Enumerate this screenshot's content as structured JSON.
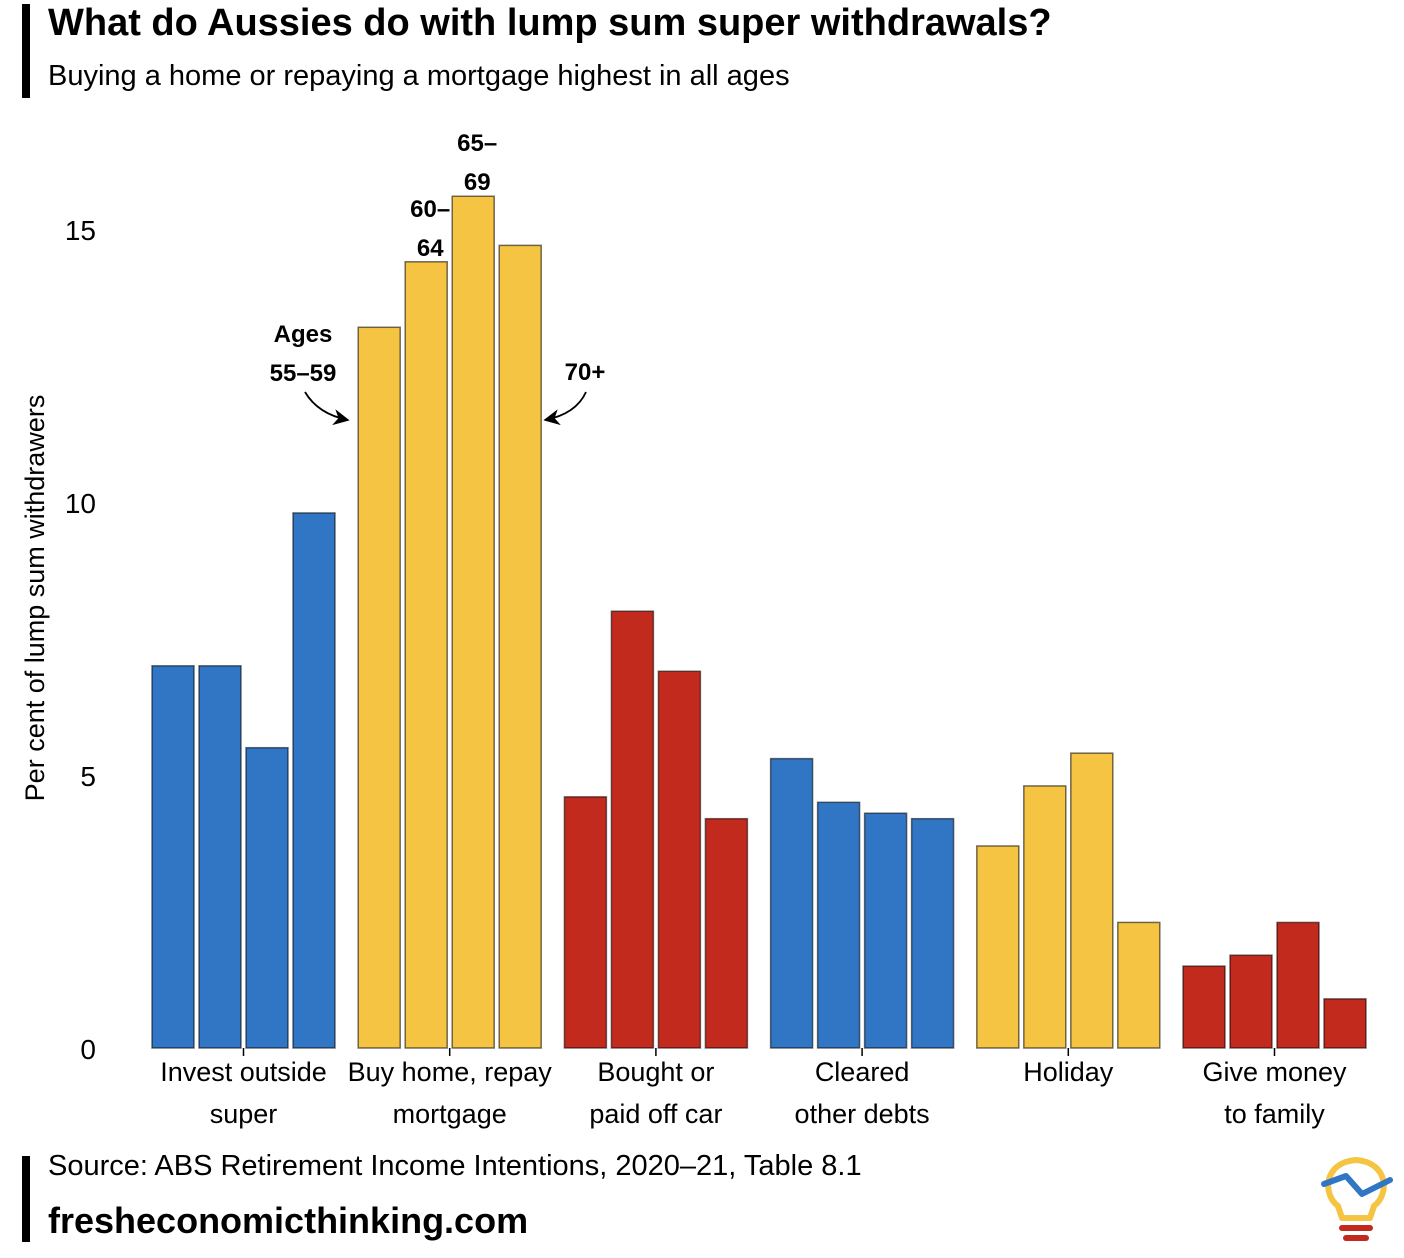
{
  "title": "What do Aussies do with lump sum super withdrawals?",
  "subtitle": "Buying a home or repaying a mortgage highest in all ages",
  "source": "Source: ABS Retirement Income Intentions, 2020‒21, Table 8.1",
  "site": "fresheconomicthinking.com",
  "logo_icon": "lightbulb-logo-icon",
  "chart_data": {
    "type": "bar",
    "ylabel": "Per cent of lump sum withdrawers",
    "ylim": [
      0,
      16.5
    ],
    "yticks": [
      0,
      5,
      10,
      15
    ],
    "grid": false,
    "legend": "none",
    "age_groups": [
      "55–59",
      "60–64",
      "65–69",
      "70+"
    ],
    "groups": [
      {
        "label": [
          "Invest outside",
          "super"
        ],
        "color": "#3176C4",
        "values": [
          7.0,
          7.0,
          5.5,
          9.8
        ]
      },
      {
        "label": [
          "Buy home, repay",
          "mortgage"
        ],
        "color": "#F6C443",
        "values": [
          13.2,
          14.4,
          15.6,
          14.7
        ]
      },
      {
        "label": [
          "Bought or",
          "paid off car"
        ],
        "color": "#C32A1E",
        "values": [
          4.6,
          8.0,
          6.9,
          4.2
        ]
      },
      {
        "label": [
          "Cleared",
          "other debts"
        ],
        "color": "#3176C4",
        "values": [
          5.3,
          4.5,
          4.3,
          4.2
        ]
      },
      {
        "label": [
          "Holiday"
        ],
        "color": "#F6C443",
        "values": [
          3.7,
          4.8,
          5.4,
          2.3
        ]
      },
      {
        "label": [
          "Give money",
          "to family"
        ],
        "color": "#C32A1E",
        "values": [
          1.5,
          1.7,
          2.3,
          0.9
        ]
      }
    ],
    "annotations": {
      "ages_label": [
        "Ages",
        "55–59"
      ],
      "bar2_label": [
        "60–",
        "64"
      ],
      "bar3_label": [
        "65–",
        "69"
      ],
      "bar4_label": [
        "70+"
      ]
    }
  }
}
